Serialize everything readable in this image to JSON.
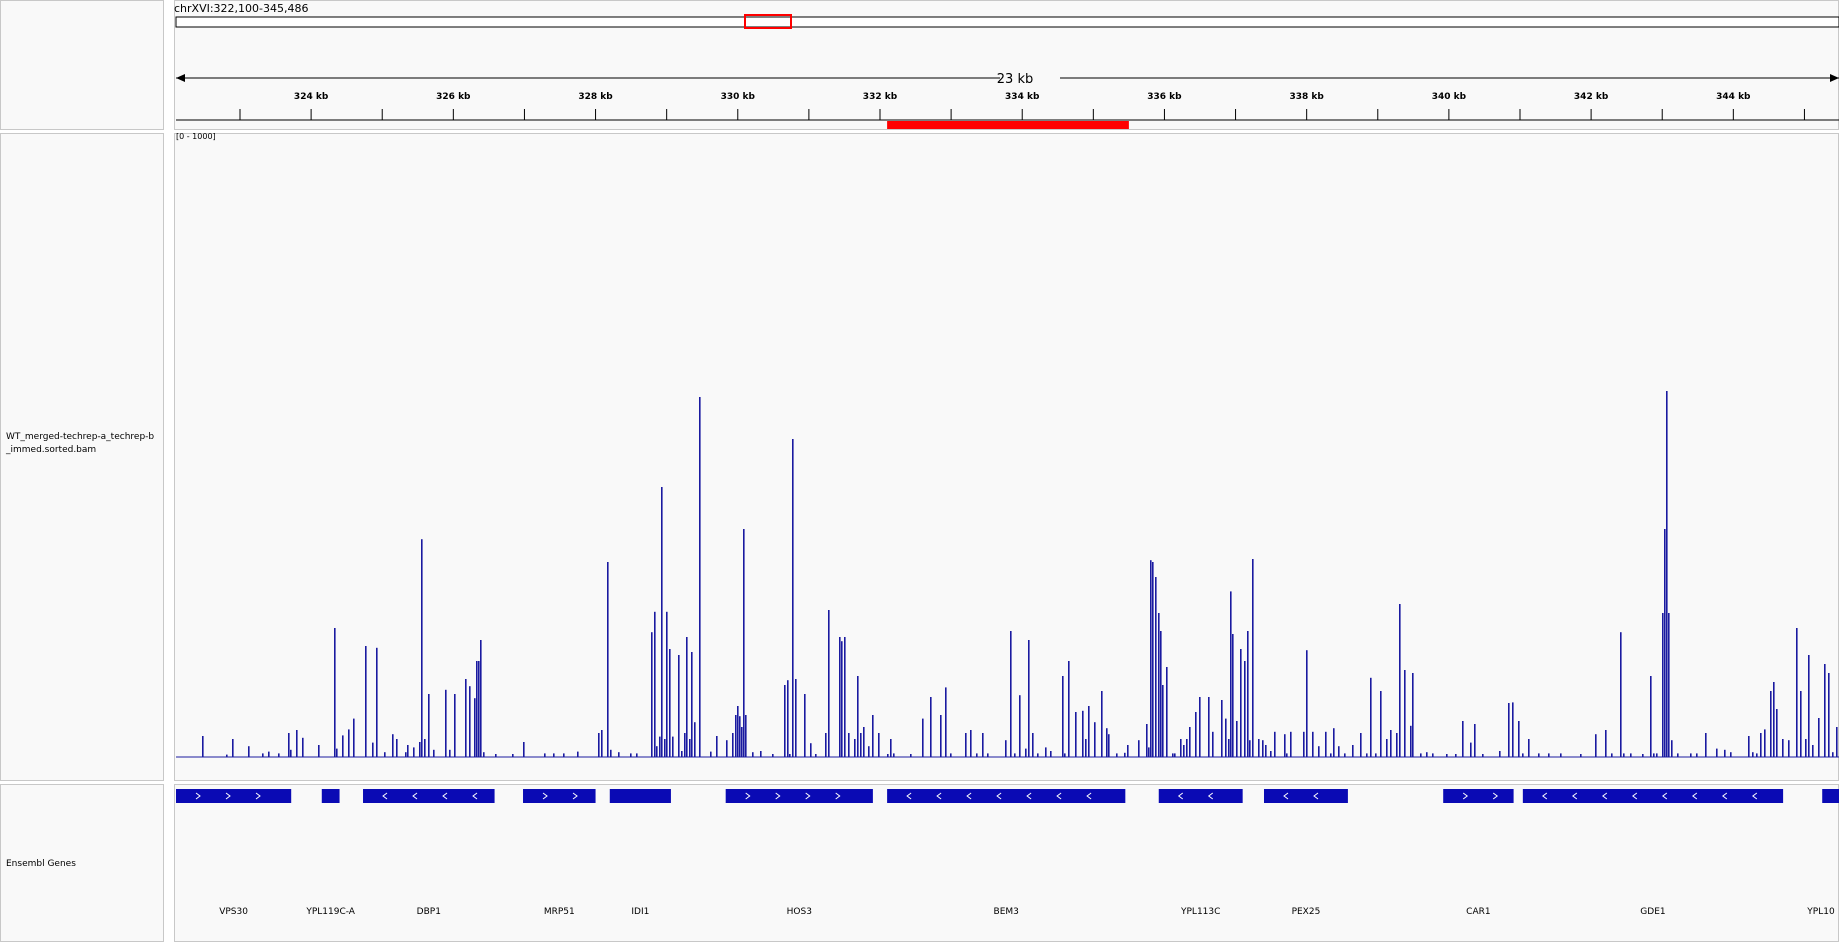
{
  "header": {
    "locus": "chrXVI:322,100-345,486",
    "span_label": "23 kb"
  },
  "ruler": {
    "range_bp": [
      322100,
      345486
    ],
    "ticks": [
      {
        "pos": 324000,
        "label": "324 kb"
      },
      {
        "pos": 326000,
        "label": "326 kb"
      },
      {
        "pos": 328000,
        "label": "328 kb"
      },
      {
        "pos": 330000,
        "label": "330 kb"
      },
      {
        "pos": 332000,
        "label": "332 kb"
      },
      {
        "pos": 334000,
        "label": "334 kb"
      },
      {
        "pos": 336000,
        "label": "336 kb"
      },
      {
        "pos": 338000,
        "label": "338 kb"
      },
      {
        "pos": 340000,
        "label": "340 kb"
      },
      {
        "pos": 342000,
        "label": "342 kb"
      },
      {
        "pos": 344000,
        "label": "344 kb"
      }
    ],
    "region_of_interest_bp": [
      332100,
      335500
    ]
  },
  "tracks": {
    "coverage": {
      "name": "WT_merged-techrep-a_techrep-b_immed.sorted.bam",
      "data_range": "[0 - 1000]",
      "color": "#1a1aa0"
    },
    "genes": {
      "name": "Ensembl Genes",
      "color": "#0a0ab4",
      "items": [
        {
          "name": "VPS30",
          "start": 322100,
          "end": 323720,
          "strand": "+"
        },
        {
          "name": "YPL119C-A",
          "start": 324150,
          "end": 324400,
          "strand": ""
        },
        {
          "name": "DBP1",
          "start": 324730,
          "end": 326580,
          "strand": "-"
        },
        {
          "name": "MRP51",
          "start": 326980,
          "end": 328000,
          "strand": "+"
        },
        {
          "name": "IDI1",
          "start": 328200,
          "end": 329060,
          "strand": ""
        },
        {
          "name": "HOS3",
          "start": 329830,
          "end": 331900,
          "strand": "+"
        },
        {
          "name": "BEM3",
          "start": 332100,
          "end": 335450,
          "strand": "-"
        },
        {
          "name": "YPL113C",
          "start": 335920,
          "end": 337100,
          "strand": "-"
        },
        {
          "name": "PEX25",
          "start": 337400,
          "end": 338580,
          "strand": "-"
        },
        {
          "name": "CAR1",
          "start": 339920,
          "end": 340910,
          "strand": "+"
        },
        {
          "name": "GDE1",
          "start": 341040,
          "end": 344700,
          "strand": "-"
        },
        {
          "name": "YPL10",
          "start": 345250,
          "end": 345486,
          "strand": "-"
        }
      ]
    }
  },
  "colors": {
    "region_of_interest": "#ff0000",
    "viewport_marker": "#ff0000"
  }
}
